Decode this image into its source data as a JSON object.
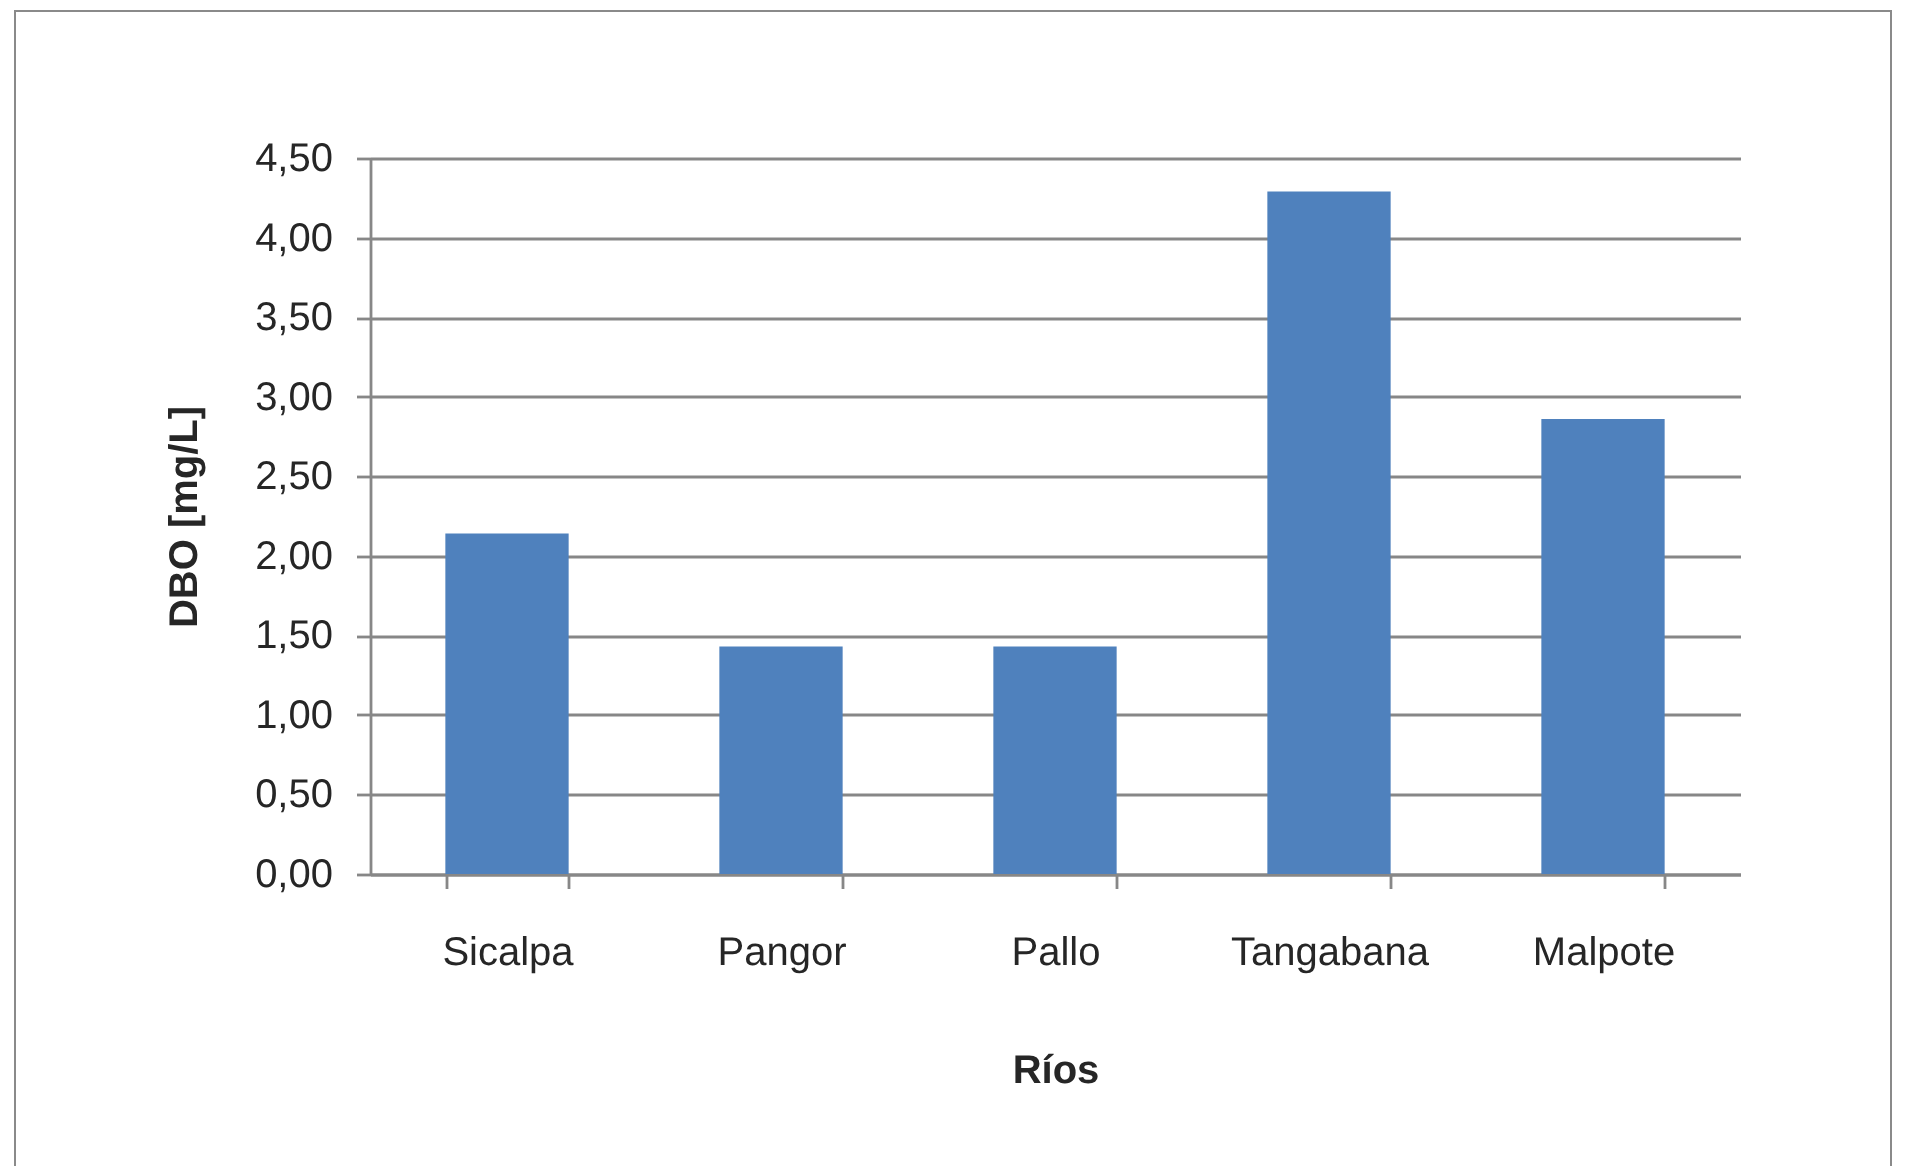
{
  "chart_data": {
    "type": "bar",
    "xlabel": "Ríos",
    "ylabel": "DBO [mg/L]",
    "categories": [
      "Sicalpa",
      "Pangor",
      "Pallo",
      "Tangabana",
      "Malpote"
    ],
    "values": [
      2.14,
      1.43,
      1.43,
      4.29,
      2.86
    ],
    "color": "#4f81bd",
    "ylim": [
      0,
      4.5
    ],
    "yticks": [
      {
        "value": 0,
        "label": "0,00"
      },
      {
        "value": 0.5,
        "label": "0,50"
      },
      {
        "value": 1,
        "label": "1,00"
      },
      {
        "value": 1.5,
        "label": "1,50"
      },
      {
        "value": 2,
        "label": "2,00"
      },
      {
        "value": 2.5,
        "label": "2,50"
      },
      {
        "value": 3,
        "label": "3,00"
      },
      {
        "value": 3.5,
        "label": "3,50"
      },
      {
        "value": 4,
        "label": "4,00"
      },
      {
        "value": 4.5,
        "label": "4,50"
      }
    ],
    "grid": "y"
  }
}
